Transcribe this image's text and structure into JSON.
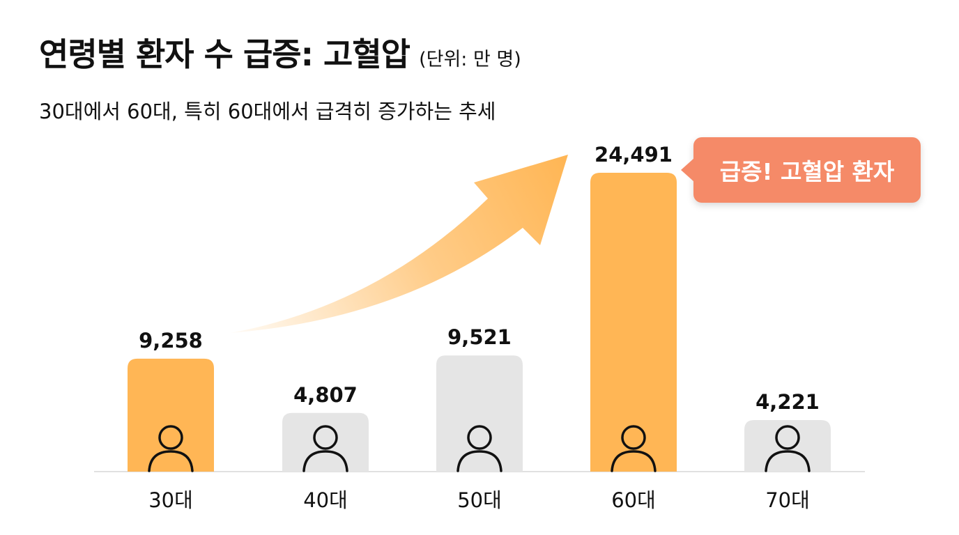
{
  "title": "연령별 환자 수 급증: 고혈압",
  "unit": "(단위: 만 명)",
  "subtitle": "30대에서 60대, 특히 60대에서 급격히 증가하는 추세",
  "callout": "급증! 고혈압 환자",
  "colors": {
    "highlight": "#ffb655",
    "neutral": "#e5e5e5",
    "callout": "#f58a68",
    "arrow": "#ffb655",
    "icon": "#111111"
  },
  "chart_data": {
    "type": "bar",
    "categories": [
      "30대",
      "40대",
      "50대",
      "60대",
      "70대"
    ],
    "values": [
      9258,
      4807,
      9521,
      24491,
      4221
    ],
    "value_labels": [
      "9,258",
      "4,807",
      "9,521",
      "24,491",
      "4,221"
    ],
    "highlighted": [
      "30대",
      "60대"
    ],
    "title": "연령별 환자 수 급증: 고혈압",
    "xlabel": "",
    "ylabel": "",
    "ylim": [
      0,
      25000
    ],
    "grid": false,
    "legend": "none",
    "annotation": "급증! 고혈압 환자"
  }
}
